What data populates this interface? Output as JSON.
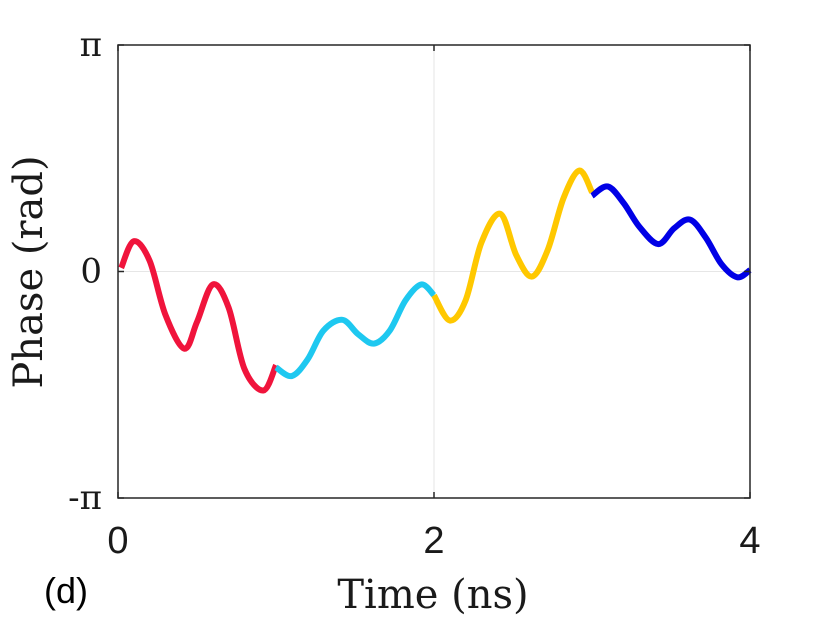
{
  "panel_label": "(d)",
  "chart_data": {
    "type": "line",
    "title": "",
    "xlabel": "Time (ns)",
    "ylabel": "Phase (rad)",
    "xlim": [
      0,
      4
    ],
    "ylim": [
      -3.14159,
      3.14159
    ],
    "x_ticks": [
      {
        "value": 0,
        "label": "0"
      },
      {
        "value": 2,
        "label": "2"
      },
      {
        "value": 4,
        "label": "4"
      }
    ],
    "y_ticks": [
      {
        "value": 3.14159,
        "label": "π"
      },
      {
        "value": 0,
        "label": "0"
      },
      {
        "value": -3.14159,
        "label": "-π"
      }
    ],
    "grid": true,
    "legend": false,
    "series": [
      {
        "color": "#f0143c",
        "x": [
          0.02,
          0.1,
          0.2,
          0.3,
          0.42,
          0.5,
          0.6,
          0.7,
          0.8,
          0.92,
          1.0
        ],
        "y": [
          0.05,
          0.42,
          0.15,
          -0.6,
          -1.07,
          -0.7,
          -0.18,
          -0.5,
          -1.35,
          -1.65,
          -1.3
        ]
      },
      {
        "color": "#1ec8f0",
        "x": [
          1.0,
          1.1,
          1.2,
          1.3,
          1.42,
          1.52,
          1.62,
          1.72,
          1.82,
          1.92,
          2.0
        ],
        "y": [
          -1.33,
          -1.45,
          -1.22,
          -0.82,
          -0.67,
          -0.87,
          -1.0,
          -0.82,
          -0.4,
          -0.18,
          -0.33
        ]
      },
      {
        "color": "#ffc800",
        "x": [
          2.0,
          2.1,
          2.2,
          2.3,
          2.42,
          2.52,
          2.62,
          2.72,
          2.82,
          2.92,
          3.0
        ],
        "y": [
          -0.33,
          -0.68,
          -0.4,
          0.4,
          0.8,
          0.23,
          -0.07,
          0.3,
          1.02,
          1.4,
          1.1
        ]
      },
      {
        "color": "#0000e6",
        "x": [
          3.0,
          3.1,
          3.2,
          3.3,
          3.42,
          3.52,
          3.62,
          3.72,
          3.82,
          3.92,
          4.0
        ],
        "y": [
          1.05,
          1.18,
          0.95,
          0.62,
          0.38,
          0.6,
          0.72,
          0.47,
          0.1,
          -0.08,
          0.02
        ]
      }
    ]
  }
}
